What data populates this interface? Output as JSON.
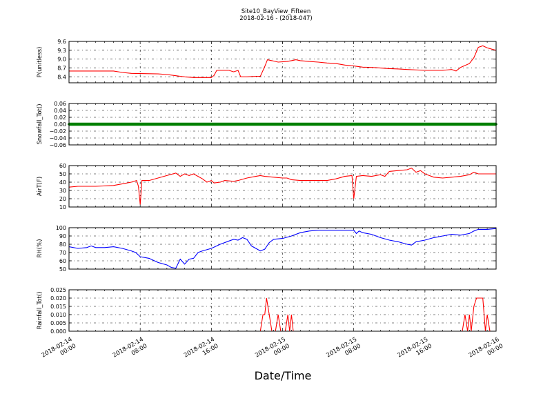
{
  "chart_data": [
    {
      "type": "line",
      "title": "Site10_BayView_Fifteen",
      "subtitle": "2018-02-16 - (2018-047)",
      "xlabel": "Date/Time",
      "x_ticks": [
        "2018-02-14\n00:00",
        "2018-02-14\n08:00",
        "2018-02-14\n16:00",
        "2018-02-15\n00:00",
        "2018-02-15\n08:00",
        "2018-02-15\n16:00",
        "2018-02-16\n00:00"
      ],
      "x_range_hours": [
        0,
        48
      ],
      "grid": true,
      "panels": [
        {
          "ylabel": "P(unitless)",
          "ylim": [
            8.2,
            9.6
          ],
          "yticks": [
            "9.6",
            "9.3",
            "9.0",
            "8.7",
            "8.4"
          ],
          "ytick_values": [
            9.6,
            9.3,
            9.0,
            8.7,
            8.4
          ],
          "color": "#ff0000",
          "series_points": [
            [
              0,
              8.6
            ],
            [
              5,
              8.6
            ],
            [
              6,
              8.55
            ],
            [
              7,
              8.52
            ],
            [
              10,
              8.5
            ],
            [
              11,
              8.48
            ],
            [
              12,
              8.44
            ],
            [
              13,
              8.4
            ],
            [
              14,
              8.38
            ],
            [
              16,
              8.38
            ],
            [
              16.3,
              8.45
            ],
            [
              16.6,
              8.62
            ],
            [
              18,
              8.62
            ],
            [
              18.5,
              8.57
            ],
            [
              19,
              8.62
            ],
            [
              19.3,
              8.4
            ],
            [
              20,
              8.4
            ],
            [
              21,
              8.42
            ],
            [
              21.5,
              8.42
            ],
            [
              22,
              8.75
            ],
            [
              22.3,
              8.98
            ],
            [
              22.8,
              8.95
            ],
            [
              23.5,
              8.9
            ],
            [
              24.5,
              8.92
            ],
            [
              25,
              8.95
            ],
            [
              25.5,
              8.98
            ],
            [
              26,
              8.95
            ],
            [
              27,
              8.92
            ],
            [
              28,
              8.9
            ],
            [
              29,
              8.87
            ],
            [
              30,
              8.85
            ],
            [
              31,
              8.8
            ],
            [
              32,
              8.77
            ],
            [
              33,
              8.73
            ],
            [
              34,
              8.72
            ],
            [
              35,
              8.7
            ],
            [
              36,
              8.68
            ],
            [
              37,
              8.67
            ],
            [
              38,
              8.65
            ],
            [
              40,
              8.62
            ],
            [
              42,
              8.62
            ],
            [
              43,
              8.65
            ],
            [
              43.5,
              8.6
            ],
            [
              44,
              8.72
            ],
            [
              45,
              8.85
            ],
            [
              45.5,
              9.05
            ],
            [
              46,
              9.4
            ],
            [
              46.5,
              9.45
            ],
            [
              47,
              9.38
            ],
            [
              48,
              9.3
            ]
          ]
        },
        {
          "ylabel": "Snowfall_Tot()",
          "ylim": [
            -0.06,
            0.06
          ],
          "yticks": [
            "0.06",
            "0.04",
            "0.02",
            "0.00",
            "−0.02",
            "−0.04",
            "−0.06"
          ],
          "ytick_values": [
            0.06,
            0.04,
            0.02,
            0.0,
            -0.02,
            -0.04,
            -0.06
          ],
          "color": "#008000",
          "style": "markers",
          "series_points": [
            [
              0,
              0
            ],
            [
              48,
              0
            ]
          ]
        },
        {
          "ylabel": "AirT(F)",
          "ylim": [
            10,
            60
          ],
          "yticks": [
            "60",
            "50",
            "40",
            "30",
            "20",
            "10"
          ],
          "ytick_values": [
            60,
            50,
            40,
            30,
            20,
            10
          ],
          "color": "#ff0000",
          "series_points": [
            [
              0,
              34
            ],
            [
              1,
              35
            ],
            [
              3,
              35
            ],
            [
              5,
              36
            ],
            [
              6,
              38
            ],
            [
              7,
              40
            ],
            [
              7.6,
              42
            ],
            [
              7.8,
              35
            ],
            [
              8,
              13
            ],
            [
              8.2,
              42
            ],
            [
              9,
              42
            ],
            [
              10,
              45
            ],
            [
              11,
              48
            ],
            [
              12,
              51
            ],
            [
              12.5,
              47
            ],
            [
              13,
              50
            ],
            [
              13.5,
              48
            ],
            [
              14,
              50
            ],
            [
              14.5,
              47
            ],
            [
              15,
              44
            ],
            [
              15.5,
              40
            ],
            [
              16,
              42
            ],
            [
              16.3,
              39
            ],
            [
              17,
              40
            ],
            [
              17.5,
              42
            ],
            [
              18.5,
              41
            ],
            [
              19,
              42
            ],
            [
              20,
              45
            ],
            [
              21,
              47
            ],
            [
              21.5,
              48
            ],
            [
              22,
              47
            ],
            [
              23,
              46
            ],
            [
              24,
              45
            ],
            [
              24.5,
              45
            ],
            [
              25,
              43
            ],
            [
              26,
              42
            ],
            [
              28,
              42
            ],
            [
              29,
              42
            ],
            [
              30,
              44
            ],
            [
              31,
              47
            ],
            [
              31.8,
              48
            ],
            [
              32,
              20
            ],
            [
              32.3,
              47
            ],
            [
              33,
              48
            ],
            [
              34,
              47
            ],
            [
              35,
              49
            ],
            [
              35.5,
              47
            ],
            [
              36,
              53
            ],
            [
              37,
              54
            ],
            [
              38,
              55
            ],
            [
              38.5,
              57
            ],
            [
              39,
              52
            ],
            [
              39.5,
              54
            ],
            [
              40,
              50
            ],
            [
              41,
              46
            ],
            [
              42,
              45
            ],
            [
              43,
              46
            ],
            [
              44,
              47
            ],
            [
              45,
              49
            ],
            [
              45.5,
              52
            ],
            [
              46,
              50
            ],
            [
              47,
              50
            ],
            [
              48,
              50
            ]
          ]
        },
        {
          "ylabel": "RH(%)",
          "ylim": [
            50,
            100
          ],
          "yticks": [
            "100",
            "90",
            "80",
            "70",
            "60",
            "50"
          ],
          "ytick_values": [
            100,
            90,
            80,
            70,
            60,
            50
          ],
          "color": "#0000ff",
          "series_points": [
            [
              0,
              77
            ],
            [
              1,
              75
            ],
            [
              2,
              76
            ],
            [
              2.5,
              78
            ],
            [
              3,
              76
            ],
            [
              4,
              76
            ],
            [
              5,
              77
            ],
            [
              6,
              75
            ],
            [
              7,
              72
            ],
            [
              7.5,
              70
            ],
            [
              8,
              65
            ],
            [
              9,
              63
            ],
            [
              10,
              58
            ],
            [
              11,
              55
            ],
            [
              11.5,
              52
            ],
            [
              12,
              51
            ],
            [
              12.5,
              62
            ],
            [
              13,
              56
            ],
            [
              13.5,
              62
            ],
            [
              14,
              63
            ],
            [
              14.5,
              70
            ],
            [
              15,
              72
            ],
            [
              16,
              75
            ],
            [
              17,
              80
            ],
            [
              18,
              84
            ],
            [
              18.5,
              86
            ],
            [
              19,
              85
            ],
            [
              19.5,
              88
            ],
            [
              20,
              86
            ],
            [
              20.5,
              78
            ],
            [
              21,
              75
            ],
            [
              21.5,
              72
            ],
            [
              22,
              74
            ],
            [
              22.5,
              82
            ],
            [
              23,
              86
            ],
            [
              24,
              87
            ],
            [
              25,
              90
            ],
            [
              26,
              94
            ],
            [
              27,
              96
            ],
            [
              28,
              97
            ],
            [
              29,
              97
            ],
            [
              30,
              97
            ],
            [
              31,
              97
            ],
            [
              32,
              97
            ],
            [
              32.3,
              93
            ],
            [
              32.6,
              96
            ],
            [
              33,
              94
            ],
            [
              34,
              92
            ],
            [
              35,
              88
            ],
            [
              36,
              85
            ],
            [
              37,
              83
            ],
            [
              38,
              80
            ],
            [
              38.5,
              79
            ],
            [
              39,
              83
            ],
            [
              40,
              85
            ],
            [
              41,
              88
            ],
            [
              42,
              90
            ],
            [
              43,
              92
            ],
            [
              44,
              91
            ],
            [
              45,
              93
            ],
            [
              45.5,
              96
            ],
            [
              46,
              98
            ],
            [
              47,
              98
            ],
            [
              48,
              99
            ]
          ]
        },
        {
          "ylabel": "Rainfall_Tot()",
          "ylim": [
            0,
            0.025
          ],
          "yticks": [
            "0.025",
            "0.020",
            "0.015",
            "0.010",
            "0.005",
            "0.000"
          ],
          "ytick_values": [
            0.025,
            0.02,
            0.015,
            0.01,
            0.005,
            0.0
          ],
          "color": "#ff0000",
          "series_points": [
            [
              0,
              0
            ],
            [
              21.5,
              0
            ],
            [
              21.8,
              0.01
            ],
            [
              22,
              0.01
            ],
            [
              22.2,
              0.02
            ],
            [
              22.5,
              0.01
            ],
            [
              22.8,
              0
            ],
            [
              23.2,
              0
            ],
            [
              23.5,
              0.01
            ],
            [
              23.8,
              0
            ],
            [
              24.3,
              0
            ],
            [
              24.6,
              0.01
            ],
            [
              24.8,
              0
            ],
            [
              25,
              0.01
            ],
            [
              25.2,
              0
            ],
            [
              44.2,
              0
            ],
            [
              44.5,
              0.01
            ],
            [
              44.8,
              0
            ],
            [
              45,
              0.01
            ],
            [
              45.2,
              0
            ],
            [
              45.5,
              0.015
            ],
            [
              45.8,
              0.02
            ],
            [
              46.5,
              0.02
            ],
            [
              46.8,
              0
            ],
            [
              47,
              0.01
            ],
            [
              47.3,
              0
            ],
            [
              48,
              0
            ]
          ]
        }
      ]
    }
  ]
}
